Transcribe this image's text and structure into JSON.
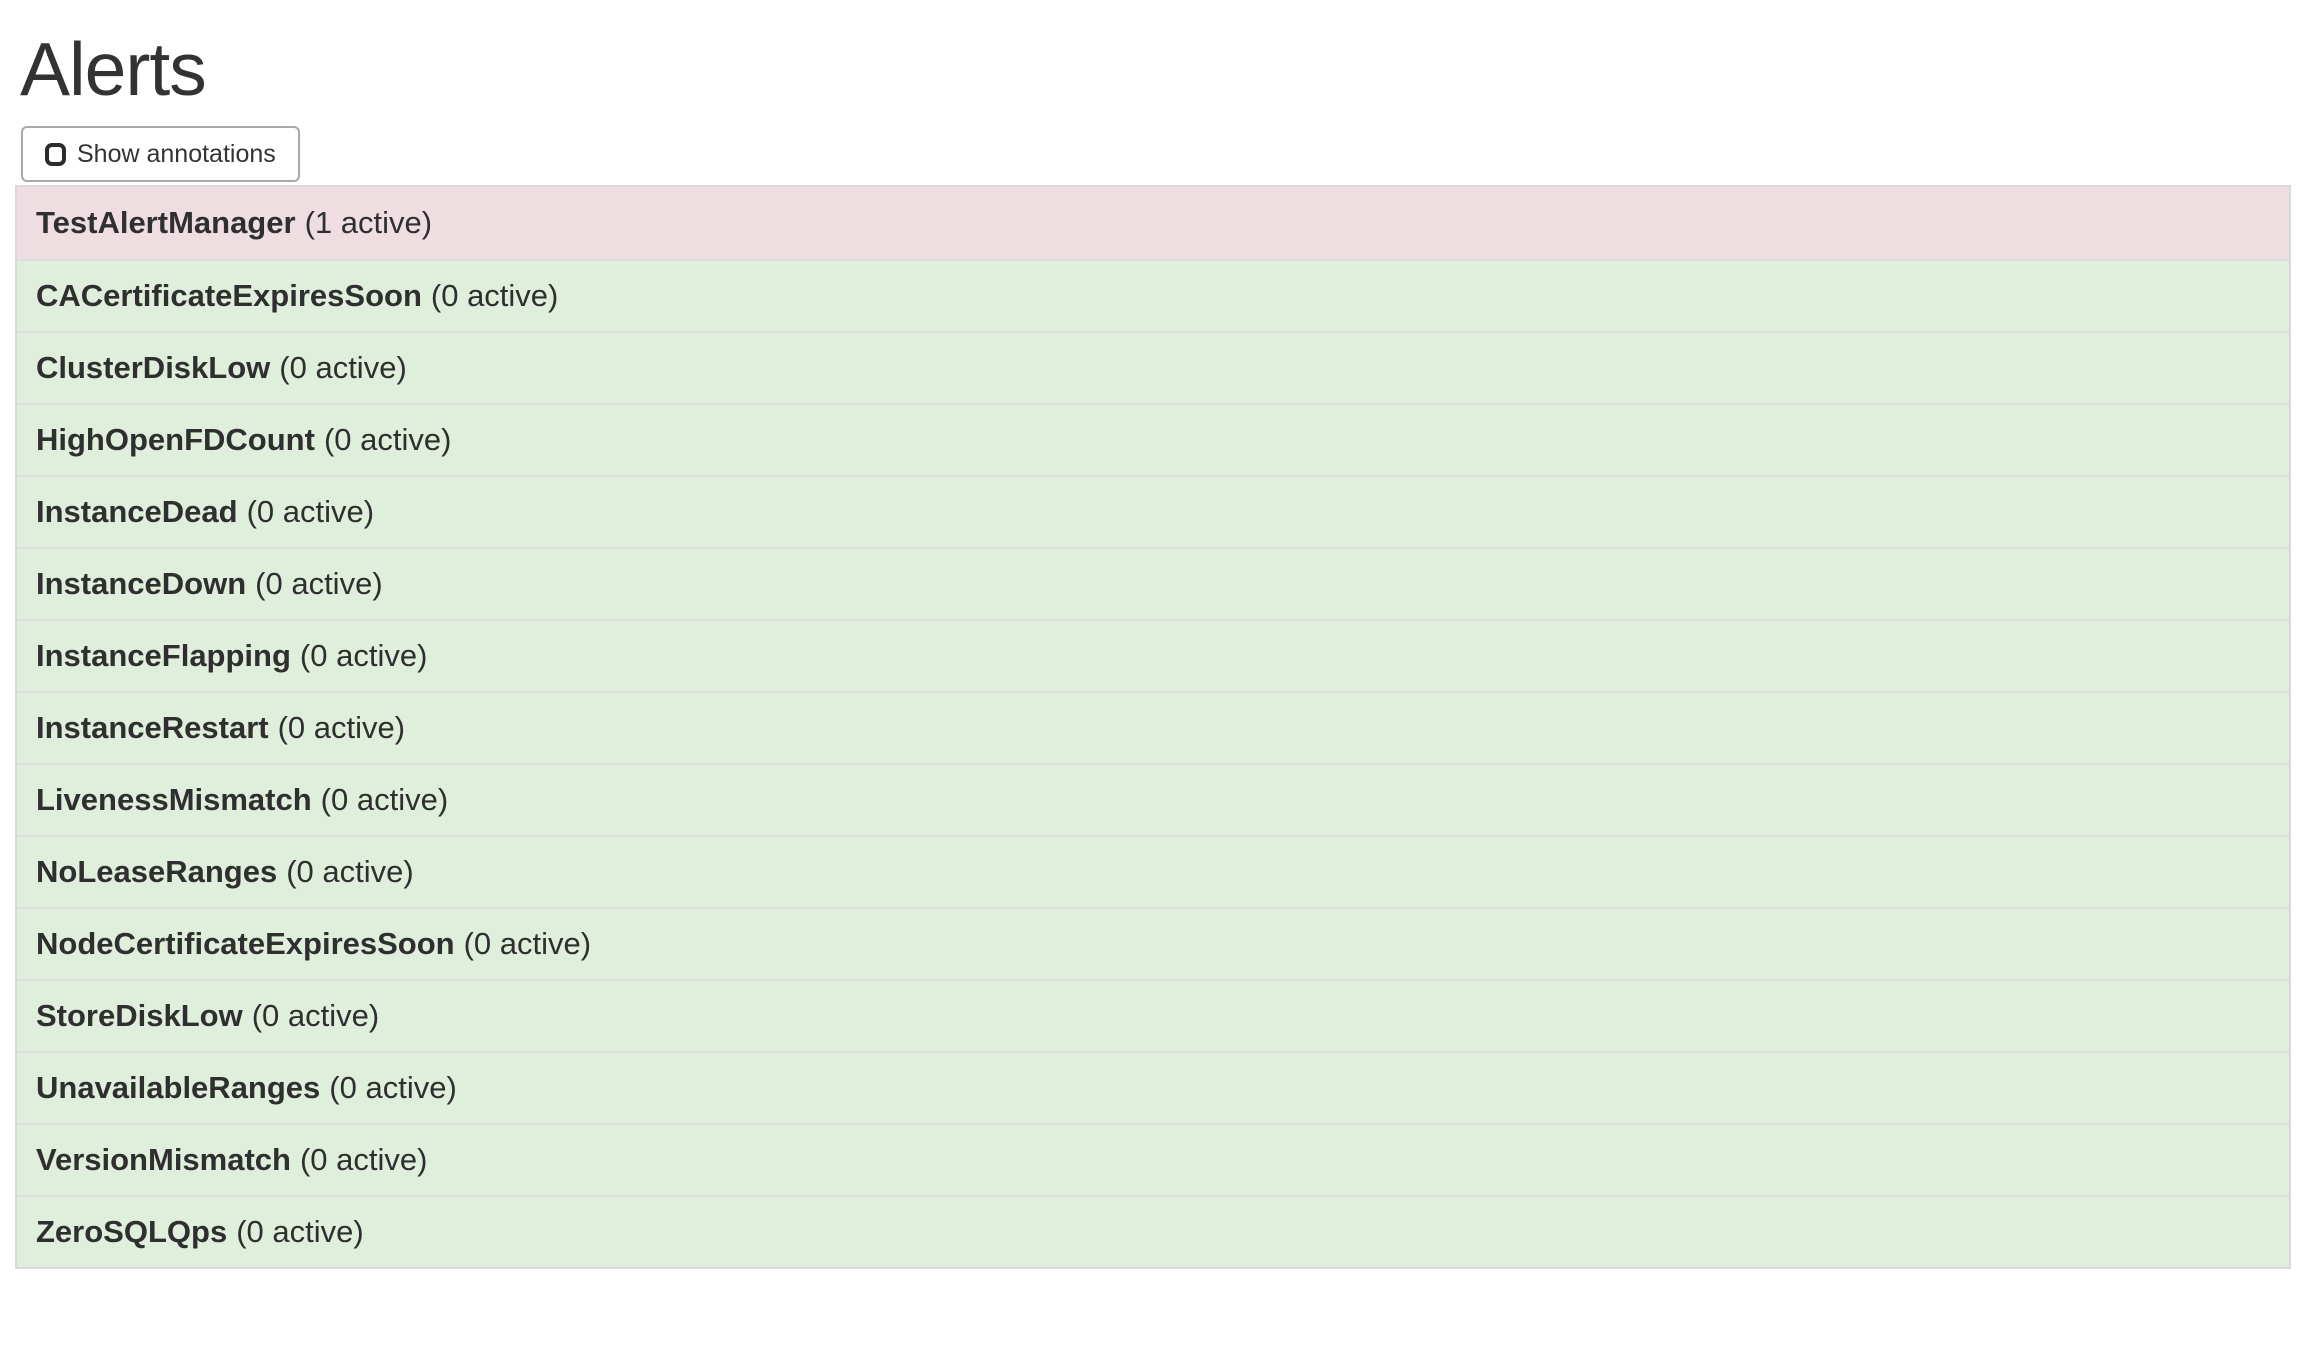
{
  "header": {
    "title": "Alerts"
  },
  "controls": {
    "show_annotations": {
      "label": "Show annotations",
      "checked": false
    }
  },
  "colors": {
    "firing_bg": "#eedee1",
    "ok_bg": "#e0eedc",
    "row_border": "#dedde2",
    "panel_border": "#d9d8dd",
    "button_border": "#a9a9a9",
    "text": "#333333"
  },
  "alerts": [
    {
      "name": "TestAlertManager",
      "active_count": 1,
      "count_label": "(1 active)",
      "state": "firing"
    },
    {
      "name": "CACertificateExpiresSoon",
      "active_count": 0,
      "count_label": "(0 active)",
      "state": "ok"
    },
    {
      "name": "ClusterDiskLow",
      "active_count": 0,
      "count_label": "(0 active)",
      "state": "ok"
    },
    {
      "name": "HighOpenFDCount",
      "active_count": 0,
      "count_label": "(0 active)",
      "state": "ok"
    },
    {
      "name": "InstanceDead",
      "active_count": 0,
      "count_label": "(0 active)",
      "state": "ok"
    },
    {
      "name": "InstanceDown",
      "active_count": 0,
      "count_label": "(0 active)",
      "state": "ok"
    },
    {
      "name": "InstanceFlapping",
      "active_count": 0,
      "count_label": "(0 active)",
      "state": "ok"
    },
    {
      "name": "InstanceRestart",
      "active_count": 0,
      "count_label": "(0 active)",
      "state": "ok"
    },
    {
      "name": "LivenessMismatch",
      "active_count": 0,
      "count_label": "(0 active)",
      "state": "ok"
    },
    {
      "name": "NoLeaseRanges",
      "active_count": 0,
      "count_label": "(0 active)",
      "state": "ok"
    },
    {
      "name": "NodeCertificateExpiresSoon",
      "active_count": 0,
      "count_label": "(0 active)",
      "state": "ok"
    },
    {
      "name": "StoreDiskLow",
      "active_count": 0,
      "count_label": "(0 active)",
      "state": "ok"
    },
    {
      "name": "UnavailableRanges",
      "active_count": 0,
      "count_label": "(0 active)",
      "state": "ok"
    },
    {
      "name": "VersionMismatch",
      "active_count": 0,
      "count_label": "(0 active)",
      "state": "ok"
    },
    {
      "name": "ZeroSQLQps",
      "active_count": 0,
      "count_label": "(0 active)",
      "state": "ok"
    }
  ]
}
